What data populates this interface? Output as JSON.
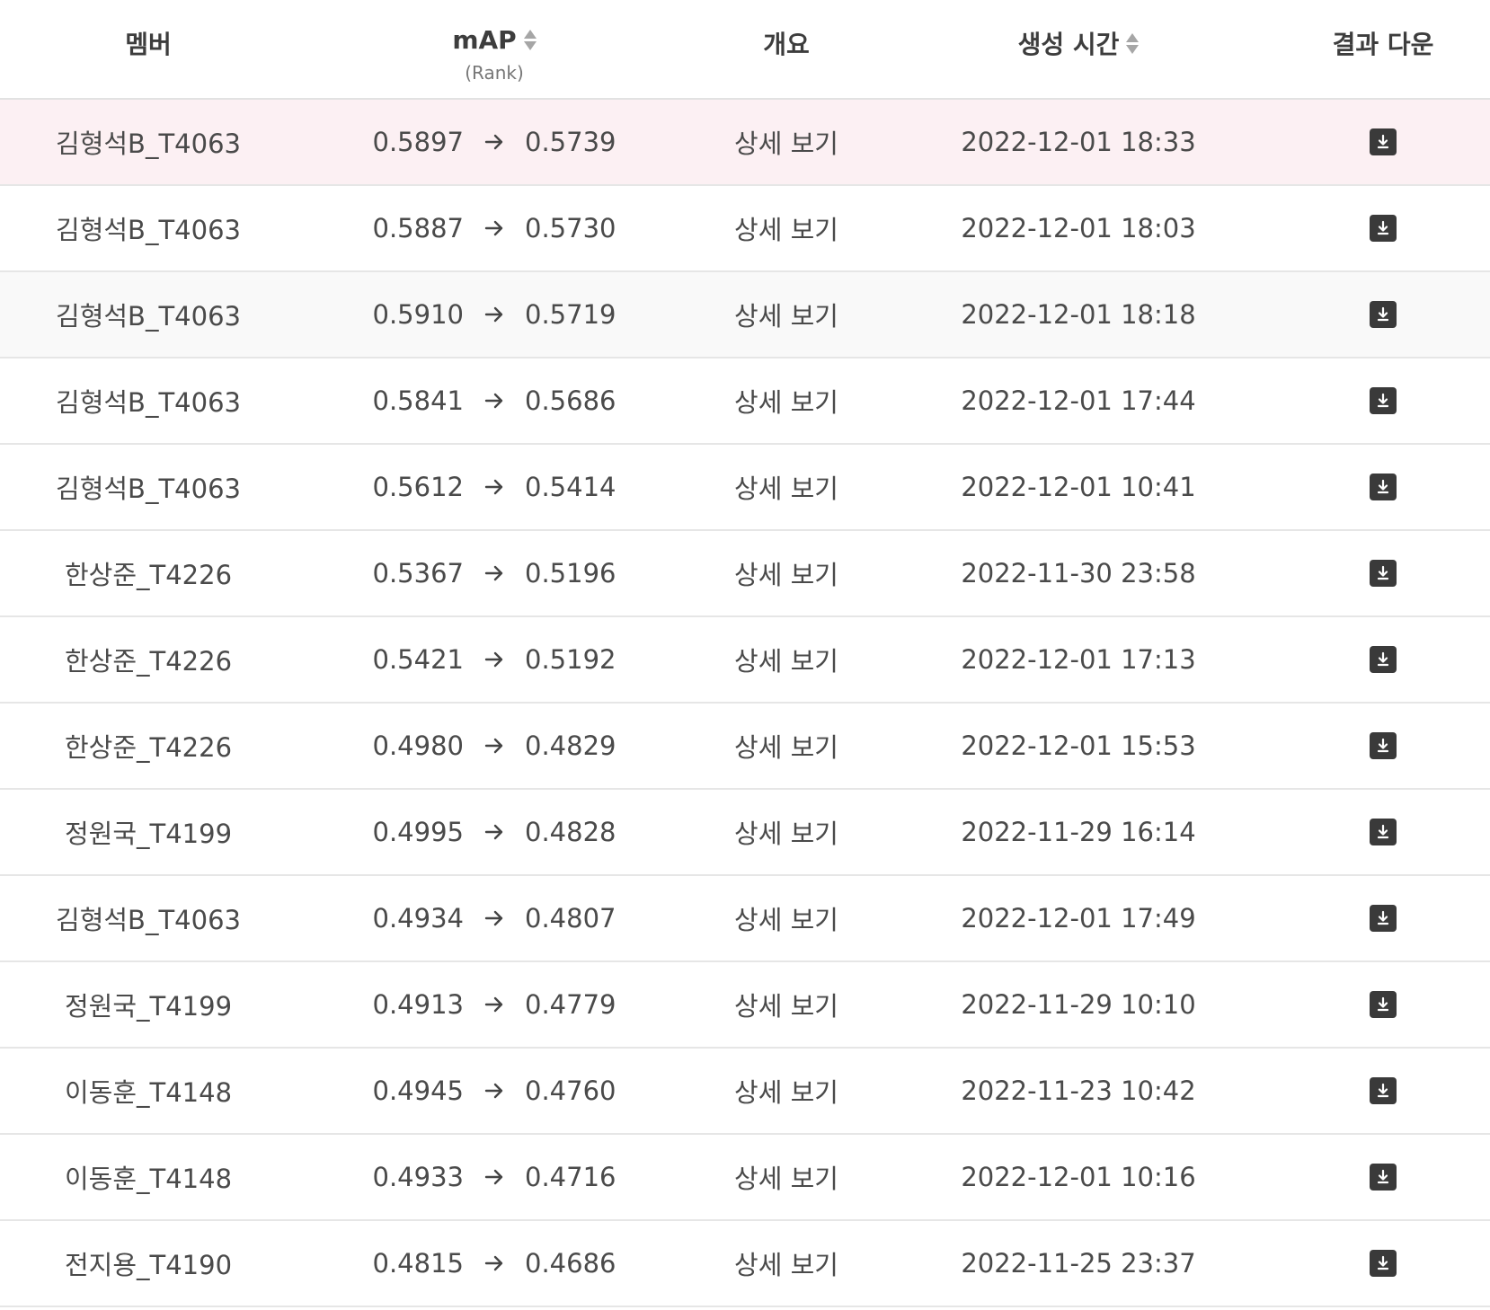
{
  "header": {
    "member": "멤버",
    "map": "mAP",
    "map_sub": "(Rank)",
    "summary": "개요",
    "created": "생성 시간",
    "download": "결과 다운"
  },
  "icons": {
    "sort": "sort-icon",
    "arrow": "arrow-right-icon",
    "download": "download-icon"
  },
  "colors": {
    "highlight_row": "#fcf0f3",
    "hover_row": "#f9f9f9",
    "download_icon_bg": "#3a3a3a"
  },
  "rows": [
    {
      "member": "김형석B_T4063",
      "map_public": "0.5897",
      "map_private": "0.5739",
      "detail": "상세 보기",
      "time": "2022-12-01 18:33"
    },
    {
      "member": "김형석B_T4063",
      "map_public": "0.5887",
      "map_private": "0.5730",
      "detail": "상세 보기",
      "time": "2022-12-01 18:03"
    },
    {
      "member": "김형석B_T4063",
      "map_public": "0.5910",
      "map_private": "0.5719",
      "detail": "상세 보기",
      "time": "2022-12-01 18:18"
    },
    {
      "member": "김형석B_T4063",
      "map_public": "0.5841",
      "map_private": "0.5686",
      "detail": "상세 보기",
      "time": "2022-12-01 17:44"
    },
    {
      "member": "김형석B_T4063",
      "map_public": "0.5612",
      "map_private": "0.5414",
      "detail": "상세 보기",
      "time": "2022-12-01 10:41"
    },
    {
      "member": "한상준_T4226",
      "map_public": "0.5367",
      "map_private": "0.5196",
      "detail": "상세 보기",
      "time": "2022-11-30 23:58"
    },
    {
      "member": "한상준_T4226",
      "map_public": "0.5421",
      "map_private": "0.5192",
      "detail": "상세 보기",
      "time": "2022-12-01 17:13"
    },
    {
      "member": "한상준_T4226",
      "map_public": "0.4980",
      "map_private": "0.4829",
      "detail": "상세 보기",
      "time": "2022-12-01 15:53"
    },
    {
      "member": "정원국_T4199",
      "map_public": "0.4995",
      "map_private": "0.4828",
      "detail": "상세 보기",
      "time": "2022-11-29 16:14"
    },
    {
      "member": "김형석B_T4063",
      "map_public": "0.4934",
      "map_private": "0.4807",
      "detail": "상세 보기",
      "time": "2022-12-01 17:49"
    },
    {
      "member": "정원국_T4199",
      "map_public": "0.4913",
      "map_private": "0.4779",
      "detail": "상세 보기",
      "time": "2022-11-29 10:10"
    },
    {
      "member": "이동훈_T4148",
      "map_public": "0.4945",
      "map_private": "0.4760",
      "detail": "상세 보기",
      "time": "2022-11-23 10:42"
    },
    {
      "member": "이동훈_T4148",
      "map_public": "0.4933",
      "map_private": "0.4716",
      "detail": "상세 보기",
      "time": "2022-12-01 10:16"
    },
    {
      "member": "전지용_T4190",
      "map_public": "0.4815",
      "map_private": "0.4686",
      "detail": "상세 보기",
      "time": "2022-11-25 23:37"
    }
  ]
}
